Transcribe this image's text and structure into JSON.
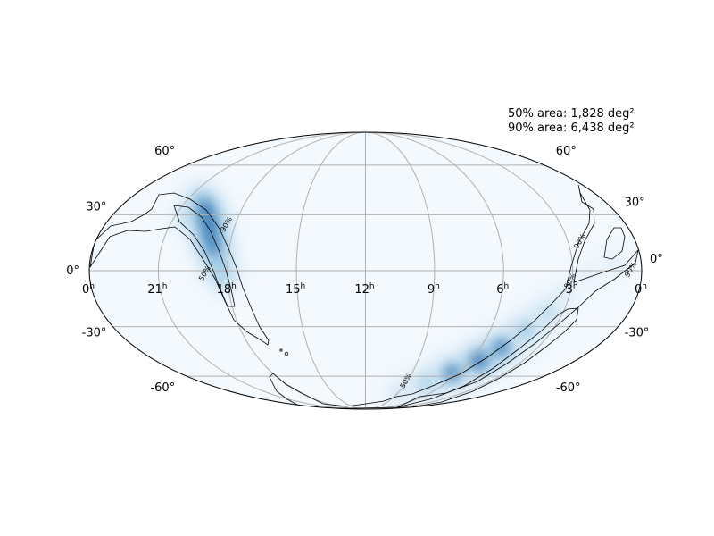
{
  "legend": {
    "area_50": "50% area: 1,828 deg²",
    "area_90": "90% area: 6,438 deg²"
  },
  "projection": "mollweide",
  "grid": true,
  "colormap": {
    "name": "Blues",
    "low": "#f7fbff",
    "mid": "#6baed6",
    "high": "#08519c"
  },
  "contour_color": "#000000",
  "grid_color": "#b0b0b0",
  "ra_ticks": [
    {
      "ra_h": 24,
      "label": "0",
      "sup": "h"
    },
    {
      "ra_h": 21,
      "label": "21",
      "sup": "h"
    },
    {
      "ra_h": 18,
      "label": "18",
      "sup": "h"
    },
    {
      "ra_h": 15,
      "label": "15",
      "sup": "h"
    },
    {
      "ra_h": 12,
      "label": "12",
      "sup": "h"
    },
    {
      "ra_h": 9,
      "label": "9",
      "sup": "h"
    },
    {
      "ra_h": 6,
      "label": "6",
      "sup": "h"
    },
    {
      "ra_h": 3,
      "label": "3",
      "sup": "h"
    },
    {
      "ra_h": 0,
      "label": "0",
      "sup": "h"
    }
  ],
  "dec_ticks": [
    {
      "dec": 60,
      "label": "60°"
    },
    {
      "dec": 30,
      "label": "30°"
    },
    {
      "dec": 0,
      "label": "0°"
    },
    {
      "dec": -30,
      "label": "-30°"
    },
    {
      "dec": -60,
      "label": "-60°"
    }
  ],
  "contour_labels": [
    {
      "text": "90%",
      "ra_h": 18.3,
      "dec": 24
    },
    {
      "text": "50%",
      "ra_h": 18.9,
      "dec": -2
    },
    {
      "text": "90%",
      "ra_h": 2.4,
      "dec": 15
    },
    {
      "text": "90%",
      "ra_h": 0.4,
      "dec": 0
    },
    {
      "text": "90%",
      "ra_h": 3.0,
      "dec": -6
    },
    {
      "text": "50%",
      "ra_h": 8.9,
      "dec": -64
    }
  ],
  "blobs": [
    {
      "name": "north-arc",
      "points": [
        [
          20.5,
          40,
          0.45
        ],
        [
          19.9,
          35,
          0.75
        ],
        [
          19.4,
          28,
          0.9
        ],
        [
          19.0,
          20,
          0.9
        ],
        [
          18.7,
          12,
          0.8
        ],
        [
          18.4,
          4,
          0.65
        ],
        [
          18.2,
          -4,
          0.55
        ],
        [
          20.6,
          28,
          0.3
        ]
      ]
    },
    {
      "name": "south-arc",
      "points": [
        [
          3.7,
          -22,
          0.5
        ],
        [
          4.3,
          -32,
          0.7
        ],
        [
          4.9,
          -42,
          0.85
        ],
        [
          5.5,
          -50,
          0.95
        ],
        [
          6.4,
          -58,
          0.85
        ],
        [
          7.5,
          -65,
          0.6
        ],
        [
          9.0,
          -72,
          0.35
        ],
        [
          3.2,
          -12,
          0.25
        ],
        [
          2.4,
          -2,
          0.2
        ],
        [
          1.2,
          4,
          0.2
        ]
      ]
    }
  ]
}
